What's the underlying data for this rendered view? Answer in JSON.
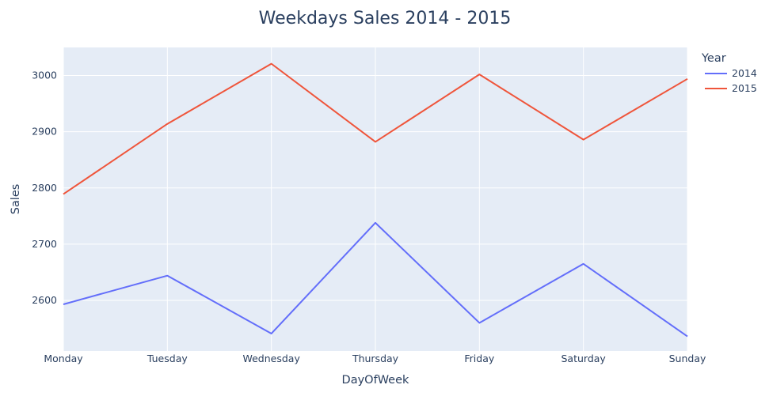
{
  "chart_data": {
    "type": "line",
    "title": "Weekdays Sales 2014 - 2015",
    "xlabel": "DayOfWeek",
    "ylabel": "Sales",
    "categories": [
      "Monday",
      "Tuesday",
      "Wednesday",
      "Thursday",
      "Friday",
      "Saturday",
      "Sunday"
    ],
    "ylim": [
      2510,
      3050
    ],
    "yticks": [
      2600,
      2700,
      2800,
      2900,
      3000
    ],
    "grid": true,
    "legend_title": "Year",
    "legend_position": "top-right",
    "series": [
      {
        "name": "2014",
        "color": "#636efa",
        "values": [
          2593,
          2644,
          2541,
          2738,
          2560,
          2665,
          2536
        ]
      },
      {
        "name": "2015",
        "color": "#ef553b",
        "values": [
          2789,
          2914,
          3021,
          2882,
          3002,
          2886,
          2994
        ]
      }
    ],
    "plot_background": "#e5ecf6"
  }
}
